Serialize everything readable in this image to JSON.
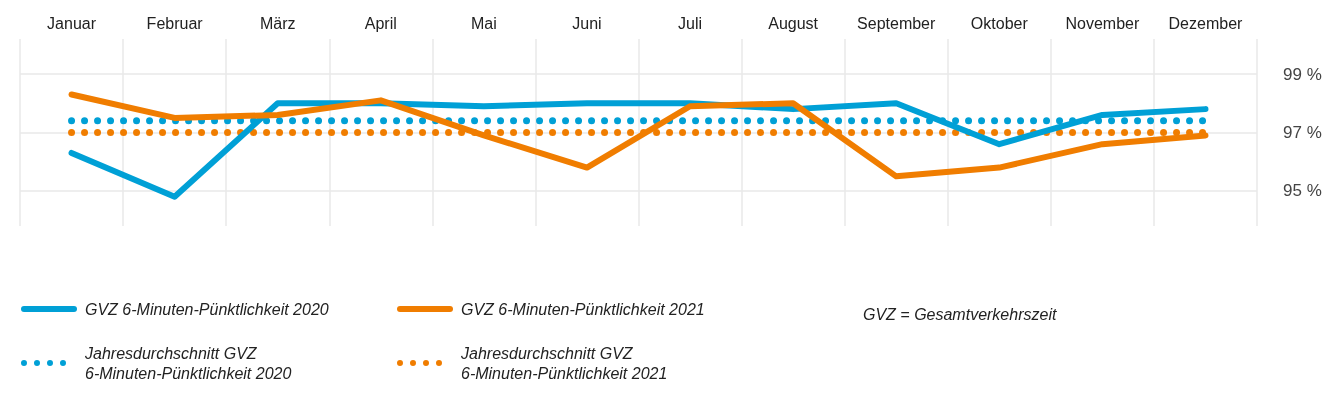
{
  "chart_data": {
    "type": "line",
    "categories": [
      "Januar",
      "Februar",
      "März",
      "April",
      "Mai",
      "Juni",
      "Juli",
      "August",
      "September",
      "Oktober",
      "November",
      "Dezember"
    ],
    "series": [
      {
        "name": "GVZ 6-Minuten-Pünktlichkeit 2020",
        "color": "#00a0d6",
        "line_style": "solid",
        "values": [
          96.3,
          94.8,
          98.0,
          98.0,
          97.9,
          98.0,
          98.0,
          97.8,
          98.0,
          96.6,
          97.6,
          97.8
        ]
      },
      {
        "name": "GVZ 6-Minuten-Pünktlichkeit 2021",
        "color": "#f07d00",
        "line_style": "solid",
        "values": [
          98.3,
          97.5,
          97.6,
          98.1,
          96.9,
          95.8,
          97.9,
          98.0,
          95.5,
          95.8,
          96.6,
          96.9
        ]
      },
      {
        "name": "Jahresdurchschnitt GVZ 6-Minuten-Pünktlichkeit 2020",
        "color": "#00a0d6",
        "line_style": "dotted",
        "values": [
          97.4,
          97.4,
          97.4,
          97.4,
          97.4,
          97.4,
          97.4,
          97.4,
          97.4,
          97.4,
          97.4,
          97.4
        ]
      },
      {
        "name": "Jahresdurchschnitt GVZ 6-Minuten-Pünktlichkeit 2021",
        "color": "#f07d00",
        "line_style": "dotted",
        "values": [
          97.0,
          97.0,
          97.0,
          97.0,
          97.0,
          97.0,
          97.0,
          97.0,
          97.0,
          97.0,
          97.0,
          97.0
        ]
      }
    ],
    "ylim": [
      93.8,
      100.2
    ],
    "yticks": [
      {
        "value": 95,
        "label": "95 %"
      },
      {
        "value": 97,
        "label": "97 %"
      },
      {
        "value": 99,
        "label": "99 %"
      }
    ],
    "grid": true,
    "legend": "bottom",
    "marker": "none",
    "annotations": [
      "GVZ = Gesamtverkehrszeit"
    ]
  }
}
